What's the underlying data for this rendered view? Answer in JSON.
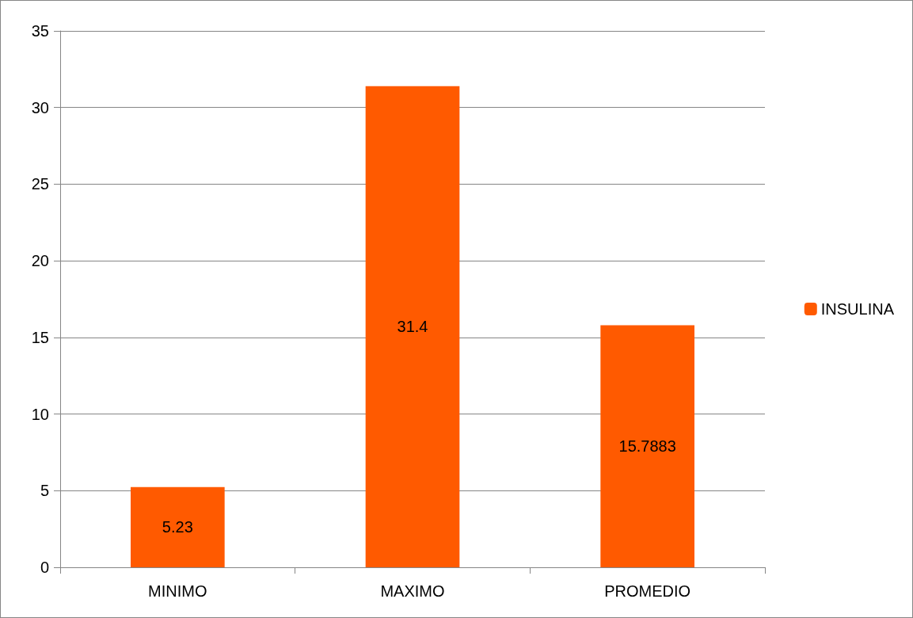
{
  "chart_data": {
    "type": "bar",
    "categories": [
      "MINIMO",
      "MAXIMO",
      "PROMEDIO"
    ],
    "series": [
      {
        "name": "INSULINA",
        "color": "#ff5a00",
        "values": [
          5.23,
          31.4,
          15.7883
        ]
      }
    ],
    "ylim": [
      0,
      35
    ],
    "yticks": [
      0,
      5,
      10,
      15,
      20,
      25,
      30,
      35
    ],
    "grid": "y",
    "legend": "right",
    "data_labels": true
  }
}
